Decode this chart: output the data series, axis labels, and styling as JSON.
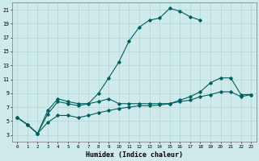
{
  "xlabel": "Humidex (Indice chaleur)",
  "bg_color": "#ceeaea",
  "grid_color": "#b8d8d8",
  "line_color": "#006060",
  "xlim": [
    -0.5,
    23.5
  ],
  "ylim": [
    2,
    22
  ],
  "xticks": [
    0,
    1,
    2,
    3,
    4,
    5,
    6,
    7,
    8,
    9,
    10,
    11,
    12,
    13,
    14,
    15,
    16,
    17,
    18,
    19,
    20,
    21,
    22,
    23
  ],
  "yticks": [
    3,
    5,
    7,
    9,
    11,
    13,
    15,
    17,
    19,
    21
  ],
  "curve1_x": [
    0,
    1,
    2,
    3,
    4,
    5,
    6,
    7,
    8,
    9,
    10,
    11,
    12,
    13,
    14,
    15,
    16,
    17,
    18
  ],
  "curve1_y": [
    5.5,
    4.5,
    3.2,
    6.5,
    8.2,
    7.8,
    7.5,
    7.5,
    9.0,
    11.2,
    13.5,
    16.5,
    18.5,
    19.5,
    19.8,
    21.2,
    20.8,
    20.0,
    19.5
  ],
  "curve2_x": [
    0,
    1,
    2,
    3,
    4,
    5,
    6,
    7,
    8,
    9,
    10,
    11,
    12,
    13,
    14,
    15,
    16,
    17,
    18,
    19,
    20,
    21,
    22,
    23
  ],
  "curve2_y": [
    5.5,
    4.5,
    3.2,
    6.0,
    7.8,
    7.5,
    7.2,
    7.5,
    7.8,
    8.2,
    7.5,
    7.5,
    7.5,
    7.5,
    7.5,
    7.5,
    8.0,
    8.5,
    9.2,
    10.5,
    11.2,
    11.2,
    8.8,
    8.8
  ],
  "curve3_x": [
    0,
    1,
    2,
    3,
    4,
    5,
    6,
    7,
    8,
    9,
    10,
    11,
    12,
    13,
    14,
    15,
    16,
    17,
    18,
    19,
    20,
    21,
    22,
    23
  ],
  "curve3_y": [
    5.5,
    4.5,
    3.2,
    4.8,
    5.8,
    5.8,
    5.5,
    5.8,
    6.2,
    6.5,
    6.8,
    7.0,
    7.2,
    7.2,
    7.3,
    7.5,
    7.8,
    8.0,
    8.5,
    8.8,
    9.2,
    9.2,
    8.5,
    8.8
  ]
}
